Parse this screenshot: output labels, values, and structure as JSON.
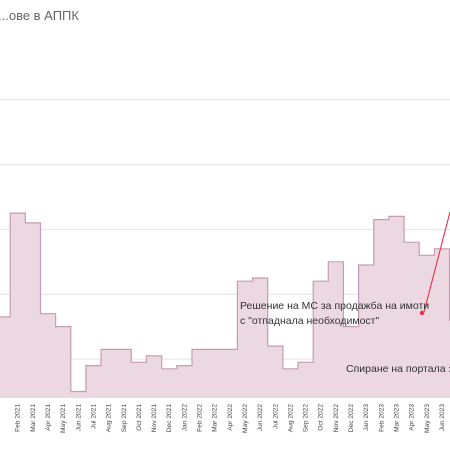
{
  "chart_data": {
    "type": "area",
    "title": "...ове в АППК",
    "step": true,
    "grid": true,
    "legend": "none",
    "colors": {
      "fill": "#ecd8e1",
      "line": "#c59cb2",
      "grid": "#e4e4e4",
      "annotation": "#e8304b"
    },
    "ylim": [
      -11,
      100
    ],
    "x_tick_labels": [
      "Feb 2021",
      "Mar 2021",
      "Apr 2021",
      "May 2021",
      "Jun 2021",
      "Jul 2021",
      "Aug 2021",
      "Sep 2021",
      "Oct 2021",
      "Nov 2021",
      "Dec 2021",
      "Jan 2022",
      "Feb 2022",
      "Mar 2022",
      "Apr 2022",
      "May 2022",
      "Jun 2022",
      "Jul 2022",
      "Aug 2022",
      "Sep 2022",
      "Oct 2022",
      "Nov 2022",
      "Dec 2022",
      "Jan 2023",
      "Feb 2023",
      "Mar 2023",
      "Apr 2023",
      "May 2023",
      "Jun 2023",
      "Jul 2023",
      "Aug 2023",
      "Sep 2023",
      "Oct 2023",
      "Nov 2023",
      "Dec 2023",
      "Jan 2024",
      "Feb 2024",
      "Mar 2024",
      "Apr 2024",
      "May 2024",
      "Jun 2024",
      "Jul 2024",
      "Aug 2024",
      "Sep 2024",
      "Oct 2024",
      "Nov 2024",
      "Dec 2024",
      "Jan 2025",
      "Feb 2025"
    ],
    "x": [
      "Jan 2021",
      "Feb 2021",
      "Mar 2021",
      "Apr 2021",
      "May 2021",
      "Jun 2021",
      "Jul 2021",
      "Aug 2021",
      "Sep 2021",
      "Oct 2021",
      "Nov 2021",
      "Dec 2021",
      "Jan 2022",
      "Feb 2022",
      "Mar 2022",
      "Apr 2022",
      "May 2022",
      "Jun 2022",
      "Jul 2022",
      "Aug 2022",
      "Sep 2022",
      "Oct 2022",
      "Nov 2022",
      "Dec 2022",
      "Jan 2023",
      "Feb 2023",
      "Mar 2023",
      "Apr 2023",
      "May 2023",
      "Jun 2023",
      "Jul 2023",
      "Aug 2023",
      "Sep 2023",
      "Oct 2023",
      "Nov 2023",
      "Dec 2023",
      "Jan 2024",
      "Feb 2024",
      "Mar 2024",
      "Apr 2024",
      "May 2024",
      "Jun 2024",
      "Jul 2024",
      "Aug 2024",
      "Sep 2024",
      "Oct 2024",
      "Nov 2024",
      "Dec 2024",
      "Jan 2025",
      "Feb 2025"
    ],
    "series": [
      {
        "values": [
          14,
          46,
          43,
          15,
          11,
          -9,
          -1,
          4,
          4,
          0,
          2,
          -2,
          -1,
          4,
          4,
          4,
          25,
          26,
          5,
          -2,
          0,
          25,
          31,
          11,
          30,
          44,
          45,
          37,
          33,
          35,
          13,
          29,
          38,
          33,
          24,
          23,
          23,
          20,
          40,
          41,
          34,
          32,
          33,
          29,
          36,
          32,
          33,
          34,
          37,
          37
        ]
      }
    ],
    "annotations": [
      {
        "text": "Решение на МС за продажба на имоти",
        "text2": "с \"отпаднала необходимост\""
      },
      {
        "text": "Спиране на портала за"
      }
    ]
  }
}
